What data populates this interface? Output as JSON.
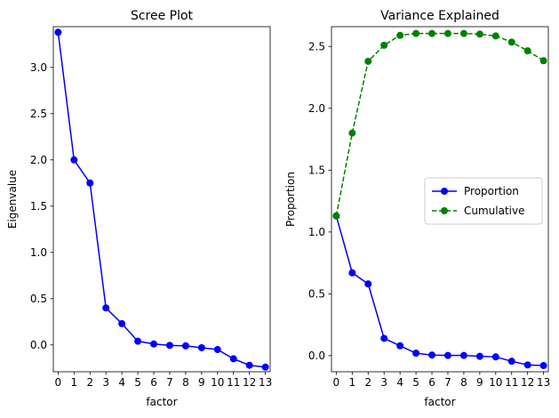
{
  "chart_data": [
    {
      "type": "line",
      "title": "Scree Plot",
      "xlabel": "factor",
      "ylabel": "Eigenvalue",
      "x": [
        0,
        1,
        2,
        3,
        4,
        5,
        6,
        7,
        8,
        9,
        10,
        11,
        12,
        13
      ],
      "x_ticks": [
        "0",
        "1",
        "2",
        "3",
        "4",
        "5",
        "6",
        "7",
        "8",
        "9",
        "10",
        "11",
        "12",
        "13"
      ],
      "xlim": [
        -0.3,
        13.3
      ],
      "ylim": [
        -0.29,
        3.44
      ],
      "y_ticks": [
        0.0,
        0.5,
        1.0,
        1.5,
        2.0,
        2.5,
        3.0
      ],
      "y_tick_labels": [
        "0.0",
        "0.5",
        "1.0",
        "1.5",
        "2.0",
        "2.5",
        "3.0"
      ],
      "grid": false,
      "series": [
        {
          "color": "#0000ff",
          "linestyle": "solid",
          "marker": "circle",
          "values": [
            3.38,
            2.0,
            1.75,
            0.4,
            0.23,
            0.04,
            0.01,
            -0.005,
            -0.01,
            -0.03,
            -0.05,
            -0.15,
            -0.22,
            -0.24
          ]
        }
      ]
    },
    {
      "type": "line",
      "title": "Variance Explained",
      "xlabel": "factor",
      "ylabel": "Proportion",
      "x": [
        0,
        1,
        2,
        3,
        4,
        5,
        6,
        7,
        8,
        9,
        10,
        11,
        12,
        13
      ],
      "x_ticks": [
        "0",
        "1",
        "2",
        "3",
        "4",
        "5",
        "6",
        "7",
        "8",
        "9",
        "10",
        "11",
        "12",
        "13"
      ],
      "xlim": [
        -0.3,
        13.3
      ],
      "ylim": [
        -0.13,
        2.66
      ],
      "y_ticks": [
        0.0,
        0.5,
        1.0,
        1.5,
        2.0,
        2.5
      ],
      "y_tick_labels": [
        "0.0",
        "0.5",
        "1.0",
        "1.5",
        "2.0",
        "2.5"
      ],
      "grid": false,
      "legend": "center-right",
      "series": [
        {
          "name": "Proportion",
          "color": "#0000ff",
          "linestyle": "solid",
          "marker": "circle",
          "values": [
            1.13,
            0.67,
            0.58,
            0.14,
            0.08,
            0.02,
            0.005,
            0.002,
            0.002,
            -0.005,
            -0.01,
            -0.045,
            -0.075,
            -0.08
          ]
        },
        {
          "name": "Cumulative",
          "color": "#008000",
          "linestyle": "dashed",
          "marker": "circle",
          "values": [
            1.13,
            1.8,
            2.38,
            2.51,
            2.59,
            2.605,
            2.605,
            2.605,
            2.605,
            2.6,
            2.585,
            2.535,
            2.465,
            2.385
          ]
        }
      ]
    }
  ]
}
